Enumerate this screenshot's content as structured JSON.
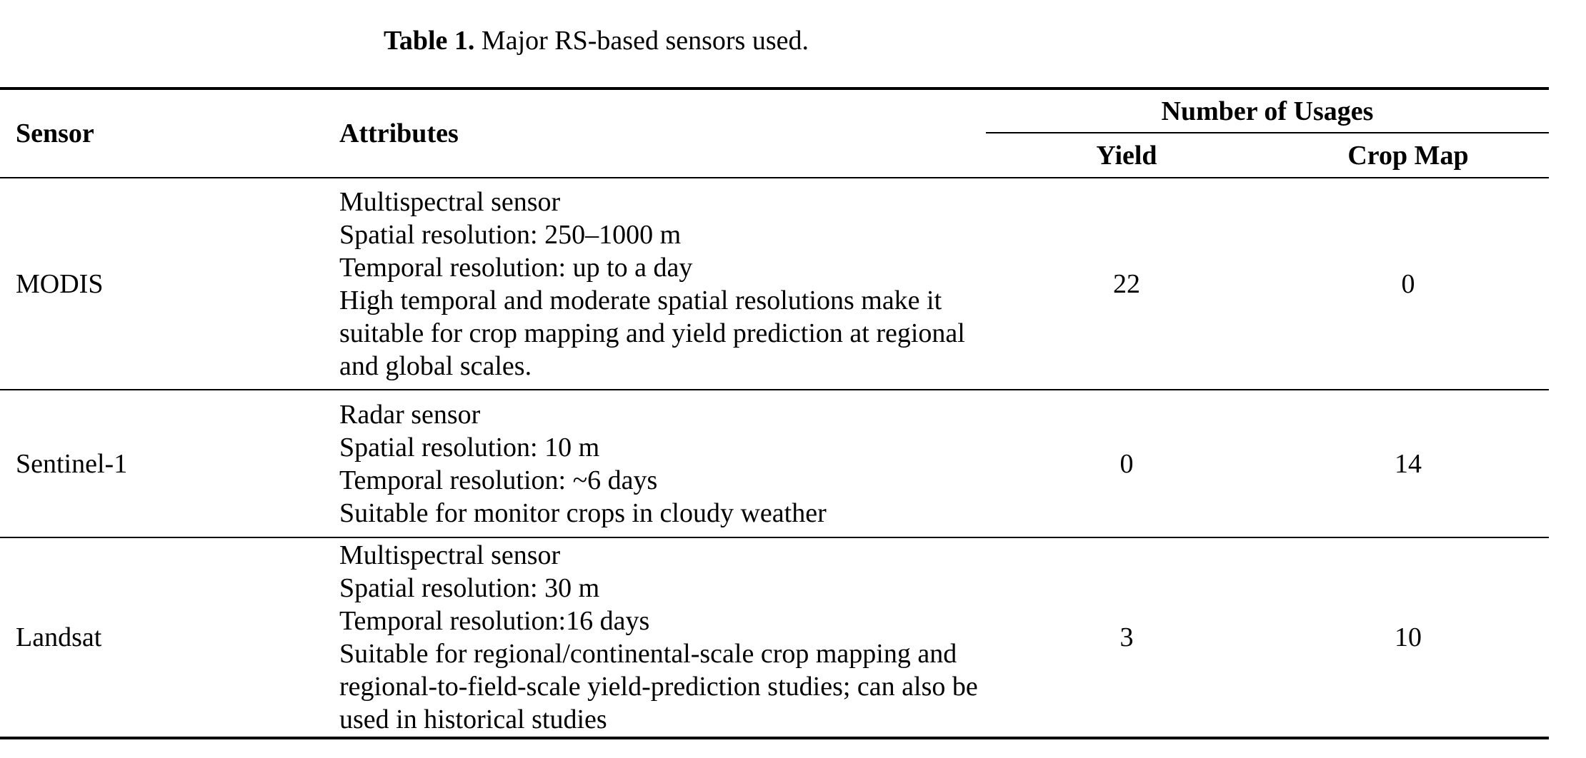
{
  "caption": {
    "label": "Table 1.",
    "text": "Major RS-based sensors used."
  },
  "table": {
    "headers": {
      "sensor": "Sensor",
      "attributes": "Attributes",
      "usages_group": "Number of Usages",
      "yield": "Yield",
      "crop_map": "Crop Map"
    },
    "rows": [
      {
        "sensor": "MODIS",
        "attributes": [
          "Multispectral sensor",
          "Spatial resolution: 250–1000 m",
          "Temporal resolution: up to a day",
          "High temporal and moderate spatial resolutions make it suitable for crop mapping and yield prediction at regional and global scales."
        ],
        "yield": "22",
        "crop_map": "0"
      },
      {
        "sensor": "Sentinel-1",
        "attributes": [
          "Radar sensor",
          "Spatial resolution: 10 m",
          "Temporal resolution: ~6 days",
          "Suitable for monitor crops in cloudy weather"
        ],
        "yield": "0",
        "crop_map": "14"
      },
      {
        "sensor": "Landsat",
        "attributes": [
          "Multispectral sensor",
          "Spatial resolution: 30 m",
          "Temporal resolution:16 days",
          "Suitable for regional/continental-scale crop mapping and regional-to-field-scale yield-prediction studies; can also be used in historical studies"
        ],
        "yield": "3",
        "crop_map": "10"
      }
    ]
  }
}
